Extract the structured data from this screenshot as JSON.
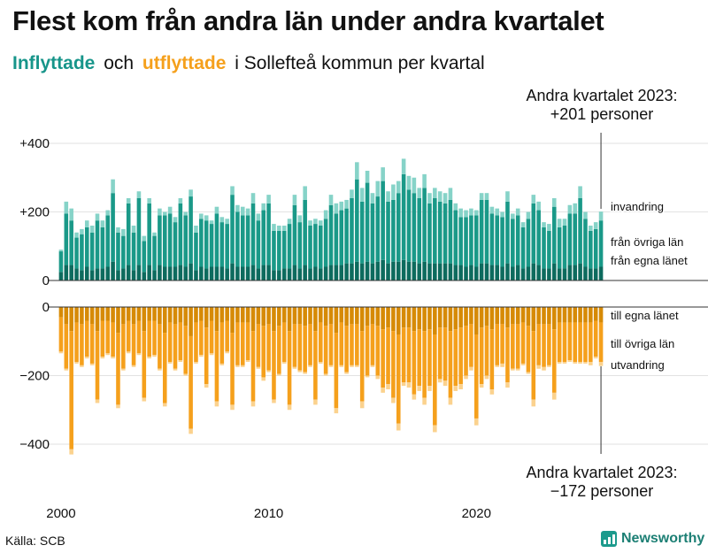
{
  "title": "Flest kom från andra län under andra kvartalet",
  "subtitle": {
    "in_word": "Inflyttade",
    "and_word": "och",
    "out_word": "utflyttade",
    "rest": "i Sollefteå  kommun  per  kvartal"
  },
  "annotation_top": {
    "line1": "Andra kvartalet 2023:",
    "line2": "+201 personer"
  },
  "annotation_bottom": {
    "line1": "Andra kvartalet 2023:",
    "line2": "−172 personer"
  },
  "source": "Källa: SCB",
  "brand": {
    "name": "Newsworthy",
    "icon": "bar-chart-icon"
  },
  "colors": {
    "in_egna": "#0d6b5e",
    "in_ovriga": "#1a9988",
    "in_invandring": "#86d3c8",
    "out_egna": "#d68a06",
    "out_ovriga": "#f5a01c",
    "out_utvandring": "#fbd28e",
    "subtitle_in": "#17958a",
    "subtitle_out": "#f5a01c"
  },
  "chart_data": {
    "type": "bar",
    "title": "Inflyttade och utflyttade i Sollefteå kommun per kvartal",
    "x_start": "2000 Q1",
    "x_end": "2023 Q2",
    "x_tick_labels": [
      "2000",
      "2010",
      "2020"
    ],
    "y_tick_labels_top": [
      "+400",
      "+200",
      "0"
    ],
    "y_tick_labels_bottom": [
      "0",
      "−200",
      "−400"
    ],
    "ylim_top": [
      0,
      400
    ],
    "ylim_bottom": [
      -400,
      0
    ],
    "series_labels_in": [
      "invandring",
      "från övriga län",
      "från egna länet"
    ],
    "series_labels_out": [
      "till egna länet",
      "till övriga län",
      "utvandring"
    ],
    "in_totals": [
      90,
      230,
      210,
      140,
      150,
      175,
      160,
      195,
      175,
      205,
      295,
      155,
      150,
      240,
      160,
      260,
      130,
      240,
      140,
      210,
      200,
      215,
      185,
      240,
      200,
      265,
      160,
      195,
      190,
      175,
      215,
      185,
      180,
      275,
      220,
      215,
      210,
      255,
      195,
      225,
      250,
      165,
      160,
      160,
      180,
      250,
      190,
      275,
      175,
      180,
      175,
      205,
      250,
      225,
      230,
      235,
      265,
      345,
      270,
      320,
      255,
      290,
      330,
      260,
      280,
      290,
      355,
      305,
      300,
      270,
      310,
      255,
      270,
      260,
      255,
      270,
      225,
      210,
      205,
      210,
      205,
      255,
      255,
      215,
      210,
      200,
      260,
      195,
      210,
      170,
      200,
      250,
      230,
      170,
      165,
      240,
      180,
      180,
      220,
      225,
      275,
      200,
      160,
      170,
      201
    ],
    "in_egna": [
      25,
      45,
      45,
      35,
      30,
      40,
      30,
      35,
      35,
      40,
      55,
      30,
      35,
      45,
      30,
      45,
      25,
      45,
      30,
      45,
      40,
      40,
      40,
      45,
      40,
      50,
      30,
      40,
      35,
      40,
      40,
      40,
      35,
      50,
      40,
      40,
      40,
      45,
      35,
      45,
      45,
      30,
      30,
      35,
      35,
      45,
      35,
      45,
      35,
      40,
      35,
      40,
      45,
      45,
      45,
      50,
      50,
      55,
      50,
      55,
      50,
      55,
      60,
      50,
      55,
      55,
      60,
      55,
      55,
      50,
      55,
      50,
      50,
      50,
      50,
      50,
      45,
      45,
      40,
      45,
      40,
      50,
      50,
      45,
      45,
      40,
      50,
      40,
      45,
      35,
      40,
      50,
      45,
      35,
      35,
      50,
      35,
      35,
      45,
      45,
      50,
      40,
      35,
      35,
      40
    ],
    "in_ovriga": [
      60,
      150,
      130,
      90,
      105,
      115,
      110,
      140,
      120,
      150,
      200,
      110,
      95,
      180,
      110,
      195,
      90,
      180,
      100,
      145,
      150,
      155,
      130,
      180,
      150,
      195,
      110,
      140,
      140,
      125,
      155,
      130,
      130,
      200,
      160,
      150,
      150,
      180,
      140,
      160,
      180,
      115,
      115,
      110,
      130,
      175,
      135,
      190,
      125,
      125,
      125,
      140,
      175,
      150,
      160,
      160,
      190,
      240,
      180,
      230,
      175,
      190,
      230,
      180,
      180,
      200,
      250,
      210,
      200,
      190,
      215,
      175,
      190,
      180,
      175,
      185,
      160,
      140,
      145,
      145,
      150,
      185,
      185,
      150,
      145,
      145,
      180,
      140,
      145,
      120,
      140,
      175,
      160,
      120,
      110,
      165,
      120,
      125,
      150,
      150,
      190,
      140,
      110,
      115,
      135
    ],
    "out_totals": [
      135,
      185,
      430,
      165,
      175,
      150,
      170,
      280,
      150,
      140,
      150,
      295,
      185,
      135,
      175,
      140,
      275,
      150,
      145,
      185,
      290,
      165,
      185,
      160,
      200,
      370,
      165,
      145,
      235,
      140,
      290,
      170,
      135,
      300,
      175,
      175,
      160,
      290,
      180,
      215,
      190,
      280,
      200,
      165,
      300,
      180,
      190,
      195,
      175,
      285,
      165,
      200,
      175,
      310,
      175,
      195,
      175,
      175,
      295,
      205,
      175,
      210,
      250,
      240,
      280,
      360,
      230,
      235,
      270,
      245,
      285,
      245,
      365,
      220,
      230,
      285,
      245,
      240,
      210,
      185,
      345,
      235,
      210,
      255,
      175,
      175,
      235,
      185,
      185,
      170,
      195,
      290,
      180,
      185,
      175,
      270,
      165,
      165,
      160,
      165,
      165,
      165,
      170,
      150,
      172
    ],
    "out_egna": [
      30,
      50,
      70,
      45,
      50,
      40,
      50,
      70,
      40,
      40,
      45,
      75,
      50,
      40,
      50,
      40,
      70,
      40,
      40,
      50,
      75,
      45,
      50,
      45,
      55,
      85,
      45,
      40,
      60,
      40,
      70,
      45,
      40,
      75,
      45,
      45,
      45,
      70,
      50,
      55,
      50,
      70,
      55,
      45,
      70,
      50,
      50,
      55,
      50,
      70,
      45,
      55,
      50,
      75,
      45,
      55,
      50,
      50,
      70,
      55,
      50,
      55,
      65,
      60,
      70,
      80,
      60,
      60,
      70,
      65,
      70,
      65,
      80,
      60,
      60,
      70,
      65,
      60,
      55,
      50,
      80,
      60,
      55,
      65,
      50,
      50,
      60,
      50,
      50,
      45,
      55,
      70,
      50,
      50,
      50,
      65,
      45,
      45,
      45,
      45,
      45,
      45,
      45,
      40,
      45
    ],
    "out_ovriga": [
      100,
      130,
      345,
      115,
      120,
      105,
      115,
      200,
      105,
      95,
      100,
      210,
      130,
      90,
      120,
      95,
      195,
      105,
      100,
      130,
      205,
      115,
      130,
      110,
      140,
      270,
      115,
      100,
      165,
      95,
      205,
      120,
      90,
      210,
      125,
      125,
      110,
      205,
      125,
      150,
      135,
      200,
      140,
      115,
      215,
      125,
      135,
      135,
      120,
      200,
      115,
      140,
      120,
      220,
      125,
      135,
      120,
      120,
      205,
      145,
      120,
      145,
      170,
      165,
      195,
      260,
      160,
      160,
      185,
      165,
      195,
      165,
      265,
      150,
      155,
      195,
      165,
      165,
      145,
      125,
      245,
      165,
      145,
      175,
      120,
      115,
      160,
      130,
      130,
      120,
      135,
      200,
      120,
      125,
      120,
      185,
      115,
      115,
      110,
      115,
      115,
      115,
      115,
      105,
      115
    ]
  }
}
